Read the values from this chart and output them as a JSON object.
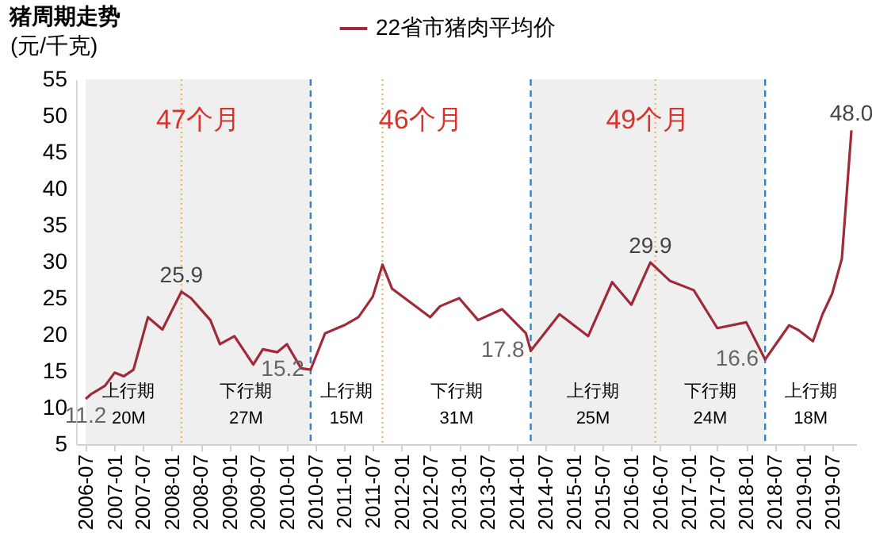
{
  "chart_data": {
    "type": "line",
    "title": "猪周期走势",
    "ylabel": "(元/千克)",
    "legend": "top",
    "x": [
      "2006-07",
      "2006-08",
      "2006-11",
      "2007-01",
      "2007-03",
      "2007-05",
      "2007-08",
      "2007-11",
      "2008-03",
      "2008-05",
      "2008-09",
      "2008-11",
      "2009-02",
      "2009-06",
      "2009-08",
      "2009-11",
      "2010-01",
      "2010-04",
      "2010-06",
      "2010-09",
      "2011-01",
      "2011-04",
      "2011-07",
      "2011-09",
      "2011-11",
      "2012-07",
      "2012-09",
      "2013-01",
      "2013-05",
      "2013-10",
      "2014-03",
      "2014-04",
      "2014-10",
      "2015-04",
      "2015-09",
      "2016-01",
      "2016-05",
      "2016-09",
      "2017-02",
      "2017-07",
      "2018-01",
      "2018-05",
      "2018-10",
      "2018-12",
      "2019-03",
      "2019-05",
      "2019-07",
      "2019-09",
      "2019-11"
    ],
    "series": [
      {
        "name": "22省市猪肉平均价",
        "color": "#9e2a3a",
        "values": [
          11.2,
          11.8,
          13.0,
          14.8,
          14.3,
          15.2,
          22.4,
          20.7,
          25.9,
          25.0,
          22.0,
          18.7,
          19.8,
          15.9,
          18.0,
          17.6,
          18.7,
          15.4,
          15.2,
          20.2,
          21.3,
          22.4,
          25.2,
          29.6,
          26.3,
          22.4,
          23.9,
          25.0,
          22.0,
          23.5,
          20.2,
          17.8,
          22.8,
          19.8,
          27.2,
          24.1,
          29.9,
          27.4,
          26.1,
          20.9,
          21.7,
          16.6,
          21.3,
          20.6,
          19.1,
          22.8,
          25.6,
          30.4,
          48.0
        ],
        "value_labels": [
          "11.2",
          null,
          null,
          null,
          null,
          null,
          null,
          null,
          "25.9",
          null,
          null,
          null,
          null,
          null,
          null,
          null,
          null,
          null,
          "15.2",
          null,
          null,
          null,
          null,
          null,
          null,
          null,
          null,
          null,
          null,
          null,
          null,
          "17.8",
          null,
          null,
          null,
          null,
          "29.9",
          null,
          null,
          null,
          null,
          "16.6",
          null,
          null,
          null,
          null,
          null,
          null,
          "48.0"
        ]
      }
    ],
    "xlim": [
      "2006-05",
      "2019-12"
    ],
    "xticks": [
      "2006-07",
      "2007-01",
      "2007-07",
      "2008-01",
      "2008-07",
      "2009-01",
      "2009-07",
      "2010-01",
      "2010-07",
      "2011-01",
      "2011-07",
      "2012-01",
      "2012-07",
      "2013-01",
      "2013-07",
      "2014-01",
      "2014-07",
      "2015-01",
      "2015-07",
      "2016-01",
      "2016-07",
      "2017-01",
      "2017-07",
      "2018-01",
      "2018-07",
      "2019-01",
      "2019-07"
    ],
    "ylim": [
      5,
      55
    ],
    "yticks": [
      5,
      10,
      15,
      20,
      25,
      30,
      35,
      40,
      45,
      50,
      55
    ],
    "grid": false,
    "bands": [
      {
        "axis": "x",
        "from": "2006-07",
        "to": "2010-06",
        "label": "47个月",
        "color": "#efefef"
      },
      {
        "axis": "x",
        "from": "2014-04",
        "to": "2018-05",
        "label": "49个月",
        "color": "#efefef"
      }
    ],
    "ref_lines": [
      {
        "axis": "x",
        "value": "2010-06",
        "color": "#3a80c0",
        "line_style": "dashed"
      },
      {
        "axis": "x",
        "value": "2014-04",
        "color": "#3a80c0",
        "line_style": "dashed"
      },
      {
        "axis": "x",
        "value": "2018-05",
        "color": "#3a80c0",
        "line_style": "dashed"
      },
      {
        "axis": "x",
        "value": "2008-03",
        "color": "#f0b860",
        "line_style": "dotted"
      },
      {
        "axis": "x",
        "value": "2011-09",
        "color": "#f0b860",
        "line_style": "dotted"
      },
      {
        "axis": "x",
        "value": "2016-06",
        "color": "#f0b860",
        "line_style": "dotted"
      }
    ],
    "annotations": [
      "46个月",
      "上行期",
      "20M",
      "下行期",
      "27M",
      "上行期",
      "15M",
      "下行期",
      "31M",
      "上行期",
      "25M",
      "下行期",
      "24M",
      "上行期",
      "18M"
    ]
  }
}
